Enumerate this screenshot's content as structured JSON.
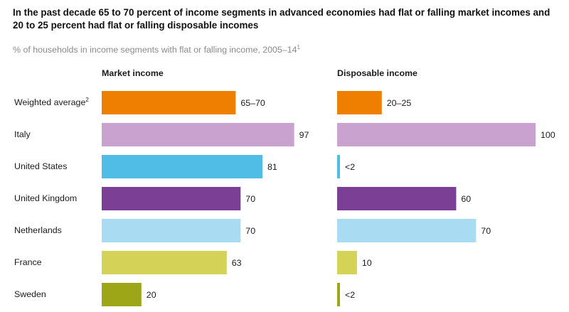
{
  "title": "In the past decade 65 to 70 percent of income segments in advanced economies had flat or falling market incomes and 20 to 25 percent had flat or falling disposable incomes",
  "subtitle": "% of households in income segments with flat or falling income, 2005–14",
  "subtitle_note": "1",
  "chart_data": [
    {
      "type": "bar",
      "orientation": "horizontal",
      "title": "Market income",
      "categories": [
        "Weighted average",
        "Italy",
        "United States",
        "United Kingdom",
        "Netherlands",
        "France",
        "Sweden"
      ],
      "category_notes": [
        "2",
        "",
        "",
        "",
        "",
        "",
        ""
      ],
      "values": [
        67.5,
        97,
        81,
        70,
        70,
        63,
        20
      ],
      "labels": [
        "65–70",
        "97",
        "81",
        "70",
        "70",
        "63",
        "20"
      ],
      "colors": [
        "#ee7f00",
        "#c9a2d0",
        "#4fbde6",
        "#7b3f95",
        "#a9dcf3",
        "#d4d257",
        "#9da617"
      ],
      "xlim": [
        0,
        100
      ]
    },
    {
      "type": "bar",
      "orientation": "horizontal",
      "title": "Disposable income",
      "categories": [
        "Weighted average",
        "Italy",
        "United States",
        "United Kingdom",
        "Netherlands",
        "France",
        "Sweden"
      ],
      "values": [
        22.5,
        100,
        1,
        60,
        70,
        10,
        1
      ],
      "labels": [
        "20–25",
        "100",
        "<2",
        "60",
        "70",
        "10",
        "<2"
      ],
      "colors": [
        "#ee7f00",
        "#c9a2d0",
        "#4fbde6",
        "#7b3f95",
        "#a9dcf3",
        "#d4d257",
        "#9da617"
      ],
      "xlim": [
        0,
        100
      ]
    }
  ]
}
